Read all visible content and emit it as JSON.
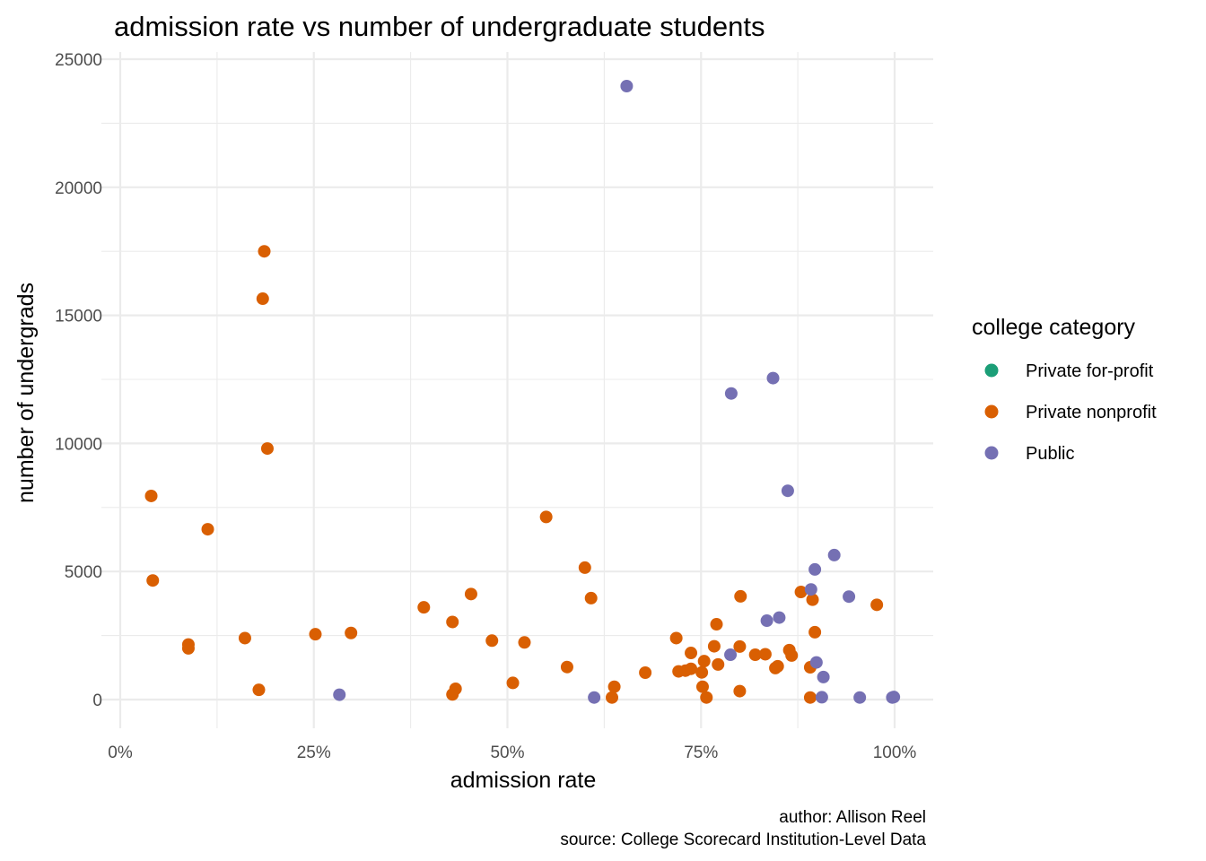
{
  "chart_data": {
    "type": "scatter",
    "title": "admission rate vs number of undergraduate students",
    "xlabel": "admission rate",
    "ylabel": "number of undergrads",
    "xlim": [
      0,
      1.05
    ],
    "ylim": [
      -1200,
      25500
    ],
    "x_ticks": [
      0,
      0.25,
      0.5,
      0.75,
      1.0
    ],
    "x_tick_labels": [
      "0%",
      "25%",
      "50%",
      "75%",
      "100%"
    ],
    "y_ticks": [
      0,
      5000,
      10000,
      15000,
      20000,
      25000
    ],
    "y_tick_labels": [
      "0",
      "5000",
      "10000",
      "15000",
      "20000",
      "25000"
    ],
    "grid": true,
    "legend": {
      "title": "college category",
      "position": "right",
      "entries": [
        {
          "name": "Private for-profit",
          "color": "#1b9e77"
        },
        {
          "name": "Private nonprofit",
          "color": "#d95f02"
        },
        {
          "name": "Public",
          "color": "#7570b3"
        }
      ]
    },
    "caption": [
      "author: Allison Reel",
      "source: College Scorecard Institution-Level Data"
    ],
    "series": [
      {
        "name": "Private for-profit",
        "color": "#1b9e77",
        "points": []
      },
      {
        "name": "Private nonprofit",
        "color": "#d95f02",
        "points": [
          [
            0.04,
            7950
          ],
          [
            0.042,
            4650
          ],
          [
            0.088,
            2150
          ],
          [
            0.088,
            2000
          ],
          [
            0.113,
            6650
          ],
          [
            0.161,
            2400
          ],
          [
            0.179,
            380
          ],
          [
            0.184,
            15650
          ],
          [
            0.186,
            17500
          ],
          [
            0.19,
            9800
          ],
          [
            0.252,
            2550
          ],
          [
            0.298,
            2600
          ],
          [
            0.392,
            3600
          ],
          [
            0.429,
            3030
          ],
          [
            0.429,
            200
          ],
          [
            0.433,
            420
          ],
          [
            0.453,
            4120
          ],
          [
            0.48,
            2300
          ],
          [
            0.507,
            650
          ],
          [
            0.522,
            2230
          ],
          [
            0.55,
            7130
          ],
          [
            0.577,
            1270
          ],
          [
            0.6,
            5150
          ],
          [
            0.608,
            3960
          ],
          [
            0.635,
            80
          ],
          [
            0.638,
            500
          ],
          [
            0.678,
            1050
          ],
          [
            0.718,
            2400
          ],
          [
            0.721,
            1100
          ],
          [
            0.73,
            1130
          ],
          [
            0.737,
            1200
          ],
          [
            0.737,
            1820
          ],
          [
            0.751,
            1060
          ],
          [
            0.752,
            500
          ],
          [
            0.754,
            1500
          ],
          [
            0.757,
            80
          ],
          [
            0.767,
            2080
          ],
          [
            0.77,
            2940
          ],
          [
            0.772,
            1370
          ],
          [
            0.8,
            2070
          ],
          [
            0.8,
            330
          ],
          [
            0.801,
            4030
          ],
          [
            0.82,
            1750
          ],
          [
            0.833,
            1770
          ],
          [
            0.846,
            1230
          ],
          [
            0.849,
            1300
          ],
          [
            0.864,
            1930
          ],
          [
            0.867,
            1720
          ],
          [
            0.879,
            4200
          ],
          [
            0.891,
            1260
          ],
          [
            0.891,
            80
          ],
          [
            0.894,
            3900
          ],
          [
            0.897,
            2630
          ],
          [
            0.977,
            3700
          ]
        ]
      },
      {
        "name": "Public",
        "color": "#7570b3",
        "points": [
          [
            0.283,
            190
          ],
          [
            0.612,
            80
          ],
          [
            0.654,
            23950
          ],
          [
            0.788,
            1750
          ],
          [
            0.789,
            11950
          ],
          [
            0.835,
            3080
          ],
          [
            0.843,
            12550
          ],
          [
            0.851,
            3200
          ],
          [
            0.862,
            8150
          ],
          [
            0.892,
            4300
          ],
          [
            0.897,
            5080
          ],
          [
            0.899,
            1450
          ],
          [
            0.906,
            90
          ],
          [
            0.908,
            880
          ],
          [
            0.922,
            5640
          ],
          [
            0.941,
            4020
          ],
          [
            0.955,
            80
          ],
          [
            0.997,
            80
          ],
          [
            0.999,
            100
          ]
        ]
      }
    ]
  }
}
